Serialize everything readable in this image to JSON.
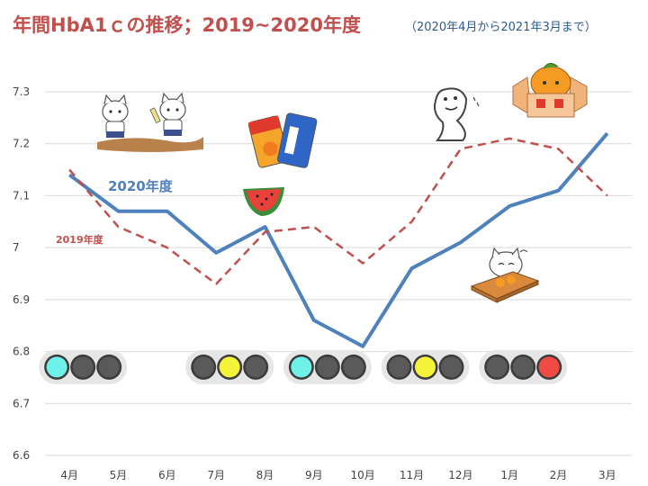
{
  "header": {
    "title": "年間HbA1ｃの推移；2019~2020年度",
    "subtitle": "（2020年4月から2021年3月まで）"
  },
  "colors": {
    "title": "#c0504d",
    "subtitle": "#2e5b8a",
    "series_2020": "#4f81bd",
    "series_2019": "#c0504d",
    "grid": "#d9d9d9",
    "light_cyan": "#6ff0e8",
    "light_yellow": "#f5f23a",
    "light_red": "#f04a44",
    "light_off": "#5a5a5a"
  },
  "chart_data": {
    "type": "line",
    "categories": [
      "4月",
      "5月",
      "6月",
      "7月",
      "8月",
      "9月",
      "10月",
      "11月",
      "12月",
      "1月",
      "2月",
      "3月"
    ],
    "ylim": [
      6.6,
      7.3
    ],
    "yticks": [
      "6.6",
      "6.7",
      "6.8",
      "6.9",
      "7",
      "7.1",
      "7.2",
      "7.3"
    ],
    "grid": true,
    "series": [
      {
        "name": "2020年度",
        "style": "solid",
        "values": [
          7.14,
          7.07,
          7.07,
          6.99,
          7.04,
          6.86,
          6.81,
          6.96,
          7.01,
          7.08,
          7.11,
          7.22
        ]
      },
      {
        "name": "2019年度",
        "style": "dashed",
        "values": [
          7.15,
          7.04,
          7.0,
          6.93,
          7.03,
          7.04,
          6.97,
          7.05,
          7.19,
          7.21,
          7.19,
          7.1
        ]
      }
    ]
  },
  "signals": [
    {
      "category": "4月",
      "lights": [
        "cyan",
        "off",
        "off"
      ]
    },
    {
      "category": "7月",
      "lights": [
        "off",
        "yellow",
        "off"
      ]
    },
    {
      "category": "9月",
      "lights": [
        "cyan",
        "off",
        "off"
      ]
    },
    {
      "category": "11月",
      "lights": [
        "off",
        "yellow",
        "off"
      ]
    },
    {
      "category": "1月",
      "lights": [
        "off",
        "off",
        "red"
      ]
    }
  ],
  "illustrations": [
    {
      "icon": "running-cats-icon",
      "category": "5月"
    },
    {
      "icon": "juice-cans-icon",
      "category": "8月"
    },
    {
      "icon": "watermelon-icon",
      "category": "8月"
    },
    {
      "icon": "ghost-icon",
      "category": "11月"
    },
    {
      "icon": "mandarin-box-icon",
      "category": "2月"
    },
    {
      "icon": "kotatsu-cat-icon",
      "category": "1月"
    }
  ]
}
